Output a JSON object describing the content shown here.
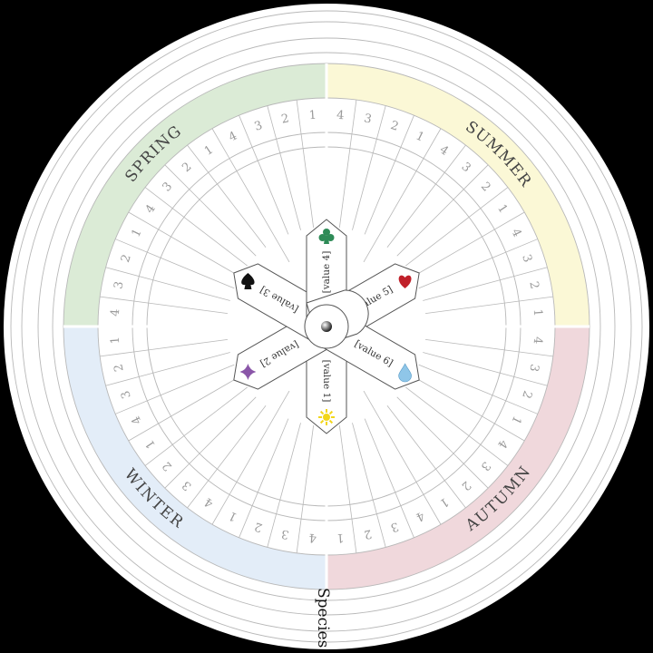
{
  "seasons": [
    {
      "label": "SPRING",
      "color": "#dbebd6"
    },
    {
      "label": "SUMMER",
      "color": "#fbf8d6"
    },
    {
      "label": "AUTUMN",
      "color": "#f0d8dc"
    },
    {
      "label": "WINTER",
      "color": "#e3edf8"
    }
  ],
  "week_numbers": [
    "1",
    "2",
    "3",
    "4"
  ],
  "bottom_label": "Species",
  "petals": [
    {
      "label": "[value 1]",
      "symbol": "sun-icon",
      "color": "#f2d61a"
    },
    {
      "label": "[value 2]",
      "symbol": "diamond-icon",
      "color": "#8a56a8"
    },
    {
      "label": "[value 3]",
      "symbol": "spade-icon",
      "color": "#111111"
    },
    {
      "label": "[value 4]",
      "symbol": "club-icon",
      "color": "#2e8b57"
    },
    {
      "label": "[value 5]",
      "symbol": "heart-icon",
      "color": "#c0202a"
    },
    {
      "label": "[value 6]",
      "symbol": "drop-icon",
      "color": "#8fc6e8"
    }
  ],
  "colors": {
    "line": "#b8b8b8",
    "text": "#9a9a9a",
    "paper": "#ffffff",
    "ink": "#333333"
  }
}
